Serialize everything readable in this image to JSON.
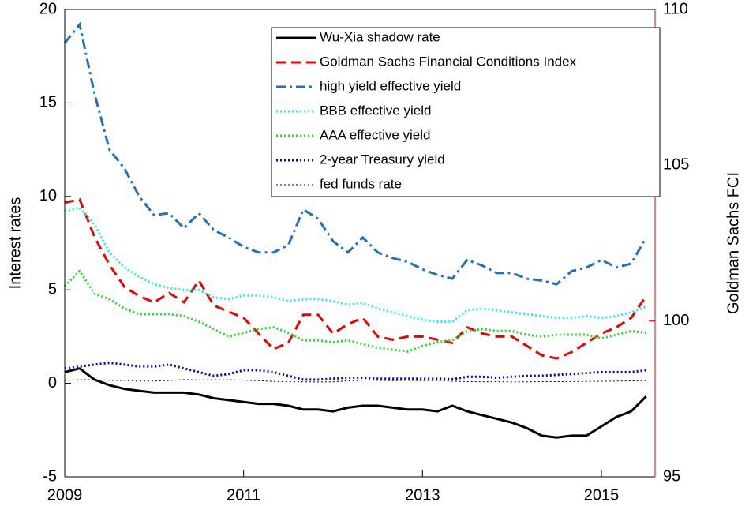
{
  "chart_data": {
    "type": "line",
    "y_label": "Interest rates",
    "y2_label": "Goldman Sachs FCI",
    "x": [
      2009,
      2009.167,
      2009.333,
      2009.5,
      2009.667,
      2009.833,
      2010,
      2010.167,
      2010.333,
      2010.5,
      2010.667,
      2010.833,
      2011,
      2011.167,
      2011.333,
      2011.5,
      2011.667,
      2011.833,
      2012,
      2012.167,
      2012.333,
      2012.5,
      2012.667,
      2012.833,
      2013,
      2013.167,
      2013.333,
      2013.5,
      2013.667,
      2013.833,
      2014,
      2014.167,
      2014.333,
      2014.5,
      2014.667,
      2014.833,
      2015,
      2015.167,
      2015.333,
      2015.5
    ],
    "xlim": [
      2009,
      2015.6
    ],
    "xticks": [
      2009,
      2011,
      2013,
      2015
    ],
    "ylim": [
      -5,
      20
    ],
    "yticks": [
      -5,
      0,
      5,
      10,
      15,
      20
    ],
    "y2lim": [
      95,
      110
    ],
    "y2ticks": [
      95,
      100,
      105,
      110
    ],
    "y2_color": "#ee0000",
    "series": [
      {
        "name": "Wu-Xia shadow rate",
        "color": "#000000",
        "style": "solid",
        "line_width": 3,
        "values": [
          0.6,
          0.8,
          0.2,
          -0.1,
          -0.3,
          -0.4,
          -0.5,
          -0.5,
          -0.5,
          -0.6,
          -0.8,
          -0.9,
          -1.0,
          -1.1,
          -1.1,
          -1.2,
          -1.4,
          -1.4,
          -1.5,
          -1.3,
          -1.2,
          -1.2,
          -1.3,
          -1.4,
          -1.4,
          -1.5,
          -1.2,
          -1.5,
          -1.7,
          -1.9,
          -2.1,
          -2.4,
          -2.8,
          -2.9,
          -2.8,
          -2.8,
          -2.3,
          -1.8,
          -1.5,
          -0.7
        ]
      },
      {
        "name": "Goldman Sachs Financial Conditions Index",
        "color": "#ee0000",
        "style": "dashed",
        "line_width": 3,
        "axis": "y2",
        "values": [
          103.8,
          103.9,
          102.7,
          101.8,
          101.1,
          100.8,
          100.6,
          100.9,
          100.6,
          101.3,
          100.5,
          100.3,
          100.1,
          99.6,
          99.1,
          99.3,
          100.2,
          100.2,
          99.6,
          99.9,
          100.1,
          99.5,
          99.4,
          99.5,
          99.5,
          99.4,
          99.3,
          99.8,
          99.6,
          99.5,
          99.5,
          99.2,
          98.9,
          98.8,
          99.0,
          99.3,
          99.6,
          99.8,
          100.1,
          100.8
        ]
      },
      {
        "name": "high yield effective yield",
        "color": "#2272b8",
        "style": "dashdot",
        "line_width": 3,
        "values": [
          18.2,
          19.2,
          15.5,
          12.5,
          11.5,
          10.0,
          9.0,
          9.1,
          8.3,
          9.1,
          8.2,
          7.8,
          7.3,
          7.0,
          7.0,
          7.4,
          9.3,
          8.8,
          7.6,
          7.0,
          7.8,
          7.0,
          6.7,
          6.5,
          6.1,
          5.8,
          5.6,
          6.6,
          6.3,
          5.9,
          5.9,
          5.6,
          5.5,
          5.3,
          6.0,
          6.2,
          6.6,
          6.2,
          6.4,
          7.8
        ]
      },
      {
        "name": "BBB effective yield",
        "color": "#22eeee",
        "style": "dotted",
        "line_width": 3,
        "values": [
          9.2,
          9.4,
          8.5,
          7.0,
          6.2,
          5.7,
          5.3,
          5.1,
          5.0,
          5.0,
          4.6,
          4.5,
          4.7,
          4.7,
          4.6,
          4.4,
          4.5,
          4.5,
          4.4,
          4.2,
          4.3,
          4.0,
          3.8,
          3.6,
          3.4,
          3.3,
          3.3,
          3.9,
          4.0,
          3.9,
          3.8,
          3.7,
          3.6,
          3.5,
          3.5,
          3.6,
          3.5,
          3.6,
          3.8,
          4.1
        ]
      },
      {
        "name": "AAA effective yield",
        "color": "#22dd22",
        "style": "dotted",
        "line_width": 3,
        "values": [
          5.2,
          6.0,
          4.8,
          4.5,
          4.0,
          3.7,
          3.7,
          3.7,
          3.6,
          3.3,
          2.9,
          2.5,
          2.7,
          2.9,
          3.0,
          2.7,
          2.3,
          2.3,
          2.2,
          2.3,
          2.1,
          1.9,
          1.8,
          1.7,
          2.0,
          2.2,
          2.3,
          2.8,
          2.9,
          2.8,
          2.8,
          2.6,
          2.5,
          2.6,
          2.6,
          2.6,
          2.4,
          2.6,
          2.8,
          2.7
        ]
      },
      {
        "name": "2-year Treasury yield",
        "color": "#0000cc",
        "style": "dotted",
        "line_width": 3,
        "values": [
          0.8,
          0.9,
          1.0,
          1.1,
          1.0,
          0.9,
          0.9,
          1.0,
          0.8,
          0.6,
          0.4,
          0.5,
          0.7,
          0.7,
          0.6,
          0.4,
          0.2,
          0.2,
          0.25,
          0.3,
          0.3,
          0.25,
          0.25,
          0.25,
          0.25,
          0.25,
          0.22,
          0.35,
          0.35,
          0.3,
          0.35,
          0.4,
          0.4,
          0.45,
          0.5,
          0.55,
          0.6,
          0.6,
          0.6,
          0.7
        ]
      },
      {
        "name": "fed funds rate",
        "color": "#000000",
        "style": "dotted",
        "line_width": 1,
        "values": [
          0.15,
          0.2,
          0.18,
          0.16,
          0.15,
          0.12,
          0.12,
          0.15,
          0.2,
          0.18,
          0.19,
          0.19,
          0.17,
          0.14,
          0.1,
          0.09,
          0.08,
          0.07,
          0.08,
          0.13,
          0.16,
          0.16,
          0.14,
          0.16,
          0.14,
          0.15,
          0.11,
          0.09,
          0.08,
          0.09,
          0.07,
          0.08,
          0.09,
          0.09,
          0.09,
          0.1,
          0.11,
          0.12,
          0.13,
          0.14
        ]
      }
    ]
  }
}
